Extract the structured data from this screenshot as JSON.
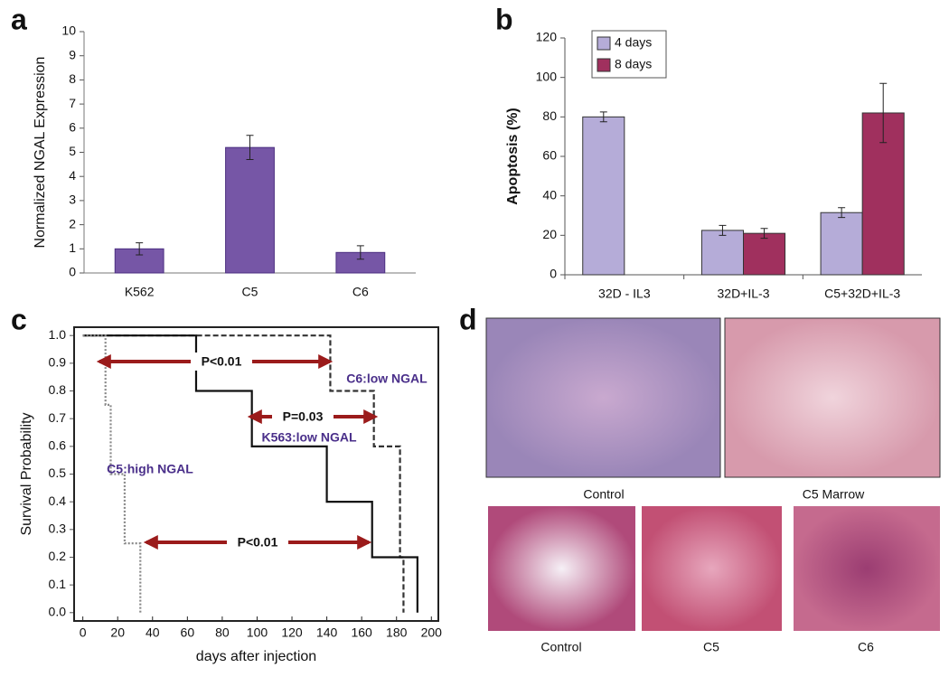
{
  "chart_data": [
    {
      "type": "bar",
      "panel_label": "a",
      "ylabel": "Normalized NGAL Expression",
      "categories": [
        "K562",
        "C5",
        "C6"
      ],
      "values": [
        1.0,
        5.2,
        0.85
      ],
      "errors": [
        0.25,
        0.5,
        0.28
      ],
      "color": "#7656a6",
      "ylim": [
        0,
        10
      ],
      "yticks": [
        0,
        1,
        2,
        3,
        4,
        5,
        6,
        7,
        8,
        9,
        10
      ]
    },
    {
      "type": "grouped_bar",
      "panel_label": "b",
      "ylabel": "Apoptosis (%)",
      "categories": [
        "32D - IL3",
        "32D+IL-3",
        "C5+32D+IL-3"
      ],
      "series": [
        {
          "name": "4 days",
          "color": "#b5acd8",
          "values": [
            80,
            22.5,
            31.5
          ],
          "errors": [
            2.5,
            2.5,
            2.5
          ]
        },
        {
          "name": "8 days",
          "color": "#a0305e",
          "values": [
            null,
            21,
            82
          ],
          "errors": [
            null,
            2.5,
            15
          ]
        }
      ],
      "ylim": [
        0,
        120
      ],
      "yticks": [
        0,
        20,
        40,
        60,
        80,
        100,
        120
      ],
      "legend": "upper left"
    },
    {
      "type": "step",
      "panel_label": "c",
      "xlabel": "days after injection",
      "ylabel": "Survival Probability",
      "xlim": [
        -5,
        204
      ],
      "ylim": [
        -0.03,
        1.03
      ],
      "xticks": [
        0,
        20,
        40,
        60,
        80,
        100,
        120,
        140,
        160,
        180,
        200
      ],
      "yticks": [
        {
          "value": 0,
          "label": "0.0"
        },
        {
          "value": 0.1,
          "label": "0.1"
        },
        {
          "value": 0.2,
          "label": "0.2"
        },
        {
          "value": 0.3,
          "label": "0.3"
        },
        {
          "value": 0.4,
          "label": "0.4"
        },
        {
          "value": 0.5,
          "label": "0.5"
        },
        {
          "value": 0.6,
          "label": "0.6"
        },
        {
          "value": 0.7,
          "label": "0.7"
        },
        {
          "value": 0.8,
          "label": "0.8"
        },
        {
          "value": 0.9,
          "label": "0.9"
        },
        {
          "value": 1,
          "label": "1.0"
        }
      ],
      "series": [
        {
          "name": "C6:low NGAL",
          "color": "#333333",
          "dash": "dashed",
          "x": [
            0,
            142,
            142,
            167,
            167,
            182,
            182,
            184,
            184
          ],
          "values": [
            1,
            1,
            0.8,
            0.8,
            0.6,
            0.6,
            0.2,
            0.2,
            0
          ]
        },
        {
          "name": "K563:low NGAL",
          "color": "#111111",
          "dash": "solid",
          "x": [
            0,
            65,
            65,
            97,
            97,
            140,
            140,
            166,
            166,
            192,
            192
          ],
          "values": [
            1,
            1,
            0.8,
            0.8,
            0.6,
            0.6,
            0.4,
            0.4,
            0.2,
            0.2,
            0
          ]
        },
        {
          "name": "C5:high NGAL",
          "color": "#888888",
          "dash": "dotted",
          "x": [
            0,
            13,
            13,
            16,
            16,
            24,
            24,
            33,
            33
          ],
          "values": [
            1,
            1,
            0.75,
            0.75,
            0.5,
            0.5,
            0.25,
            0.25,
            0
          ]
        }
      ],
      "annotations": [
        "P<0.01",
        "P=0.03",
        "P<0.01"
      ]
    }
  ],
  "panel_d": {
    "panel_label": "d",
    "images": [
      "Control",
      "C5 Marrow",
      "Control",
      "C5",
      "C6"
    ]
  }
}
